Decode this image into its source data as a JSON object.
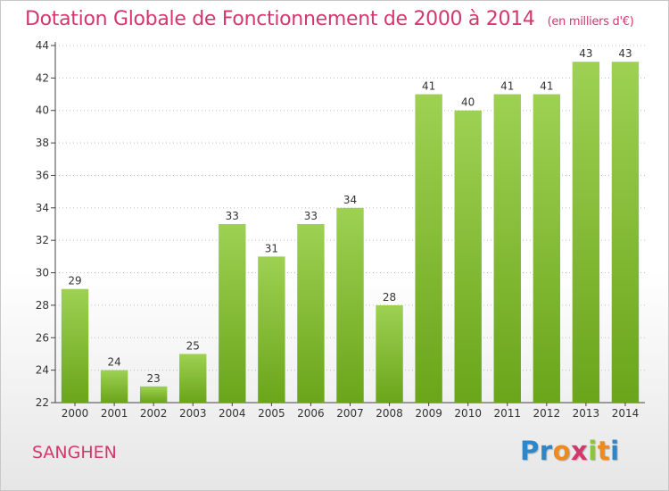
{
  "chart_data": {
    "type": "bar",
    "title": "Dotation Globale de Fonctionnement de 2000 à 2014",
    "subtitle": "(en milliers d'€)",
    "categories": [
      "2000",
      "2001",
      "2002",
      "2003",
      "2004",
      "2005",
      "2006",
      "2007",
      "2008",
      "2009",
      "2010",
      "2011",
      "2012",
      "2013",
      "2014"
    ],
    "values": [
      29,
      24,
      23,
      25,
      33,
      31,
      33,
      34,
      28,
      41,
      40,
      41,
      41,
      43,
      43
    ],
    "data_labels": [
      "29",
      "24",
      "23",
      "25",
      "33",
      "31",
      "33",
      "34",
      "28",
      "41",
      "40",
      "41",
      "41",
      "43",
      "43"
    ],
    "ylim": [
      22,
      44
    ],
    "yticks": [
      22,
      24,
      26,
      28,
      30,
      32,
      34,
      36,
      38,
      40,
      42,
      44
    ],
    "grid": true,
    "bar_color_top": "#9ed153",
    "bar_color_bottom": "#6aa51a"
  },
  "footer": {
    "commune": "SANGHEN",
    "logo_letters": [
      "P",
      "r",
      "o",
      "x",
      "i",
      "t",
      "i"
    ],
    "logo_colors": [
      "#2e86c8",
      "#2e86c8",
      "#f08a1c",
      "#d4376b",
      "#8cc43c",
      "#f08a1c",
      "#2e86c8"
    ]
  }
}
